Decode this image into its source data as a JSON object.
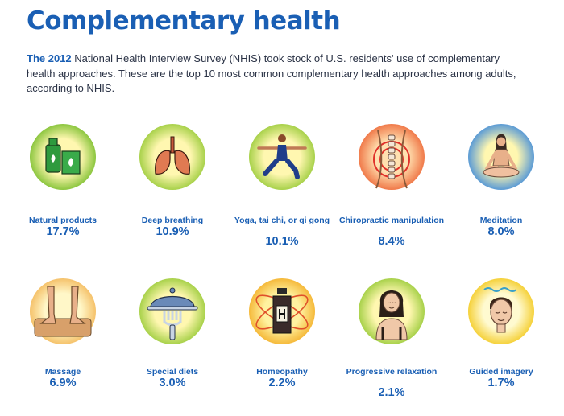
{
  "title": "Complementary health",
  "intro": {
    "lead": "The 2012",
    "text": " National Health Interview Survey (NHIS) took stock of U.S. residents' use of complementary health approaches. These are the top 10 most common complementary health approaches among adults, according to NHIS."
  },
  "items": [
    {
      "label": "Natural products",
      "value": "17.7%",
      "icon": "supplement-bottles-icon",
      "halo": "#8cc63f"
    },
    {
      "label": "Deep breathing",
      "value": "10.9%",
      "icon": "lungs-icon",
      "halo": "#a8d14a"
    },
    {
      "label": "Yoga, tai chi, or qi gong",
      "value": "10.1%",
      "icon": "yoga-pose-icon",
      "halo": "#a8d14a"
    },
    {
      "label": "Chiropractic manipulation",
      "value": "8.4%",
      "icon": "spine-icon",
      "halo": "#f07a4a"
    },
    {
      "label": "Meditation",
      "value": "8.0%",
      "icon": "meditation-icon",
      "halo": "#5b9bd5"
    },
    {
      "label": "Massage",
      "value": "6.9%",
      "icon": "massage-hands-icon",
      "halo": "#f5c26b"
    },
    {
      "label": "Special diets",
      "value": "3.0%",
      "icon": "cloche-fork-icon",
      "halo": "#a8d14a"
    },
    {
      "label": "Homeopathy",
      "value": "2.2%",
      "icon": "homeopathy-bottle-icon",
      "halo": "#f5b93a"
    },
    {
      "label": "Progressive relaxation",
      "value": "2.1%",
      "icon": "relaxed-woman-icon",
      "halo": "#a8d14a"
    },
    {
      "label": "Guided imagery",
      "value": "1.7%",
      "icon": "guided-face-icon",
      "halo": "#f5d13a"
    }
  ]
}
